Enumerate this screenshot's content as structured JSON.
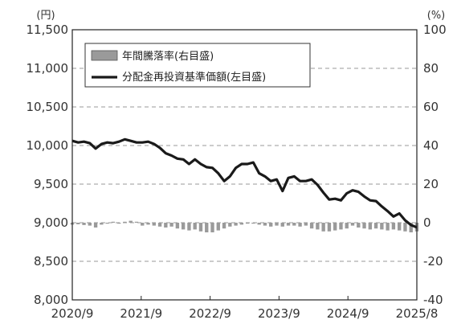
{
  "chart_data": {
    "type": "line",
    "title": "",
    "x_ticks": [
      "2020/9",
      "2021/9",
      "2022/9",
      "2023/9",
      "2024/9",
      "2025/8"
    ],
    "left_axis": {
      "unit": "(円)",
      "ylim": [
        8000,
        11500
      ],
      "ticks": [
        "8,000",
        "8,500",
        "9,000",
        "9,500",
        "10,000",
        "10,500",
        "11,000",
        "11,500"
      ],
      "tick_values": [
        8000,
        8500,
        9000,
        9500,
        10000,
        10500,
        11000,
        11500
      ]
    },
    "right_axis": {
      "unit": "(%)",
      "ylim": [
        -40,
        100
      ],
      "ticks": [
        "-40",
        "-20",
        "0",
        "20",
        "40",
        "60",
        "80",
        "100"
      ],
      "tick_values": [
        -40,
        -20,
        0,
        20,
        40,
        60,
        80,
        100
      ]
    },
    "grid": "dashed horizontal",
    "legend_position": "top-left",
    "legend": {
      "bar_label": "年間騰落率(右目盛)",
      "line_label": "分配金再投資基準価額(左目盛)"
    },
    "colors": {
      "line": "#1a1a1a",
      "bar": "#9a9a9a",
      "grid": "#999999"
    },
    "x": [
      "2020-09",
      "2020-10",
      "2020-11",
      "2020-12",
      "2021-01",
      "2021-02",
      "2021-03",
      "2021-04",
      "2021-05",
      "2021-06",
      "2021-07",
      "2021-08",
      "2021-09",
      "2021-10",
      "2021-11",
      "2021-12",
      "2022-01",
      "2022-02",
      "2022-03",
      "2022-04",
      "2022-05",
      "2022-06",
      "2022-07",
      "2022-08",
      "2022-09",
      "2022-10",
      "2022-11",
      "2022-12",
      "2023-01",
      "2023-02",
      "2023-03",
      "2023-04",
      "2023-05",
      "2023-06",
      "2023-07",
      "2023-08",
      "2023-09",
      "2023-10",
      "2023-11",
      "2023-12",
      "2024-01",
      "2024-02",
      "2024-03",
      "2024-04",
      "2024-05",
      "2024-06",
      "2024-07",
      "2024-08",
      "2024-09",
      "2024-10",
      "2024-11",
      "2024-12",
      "2025-01",
      "2025-02",
      "2025-03",
      "2025-04",
      "2025-05",
      "2025-06",
      "2025-07",
      "2025-08"
    ],
    "series": [
      {
        "name": "分配金再投資基準価額(左目盛)",
        "axis": "left",
        "kind": "line",
        "values": [
          10060,
          10040,
          10050,
          10030,
          9960,
          10020,
          10040,
          10030,
          10050,
          10080,
          10060,
          10040,
          10040,
          10050,
          10020,
          9970,
          9900,
          9870,
          9830,
          9820,
          9760,
          9820,
          9760,
          9720,
          9710,
          9640,
          9540,
          9600,
          9710,
          9760,
          9760,
          9780,
          9640,
          9600,
          9540,
          9560,
          9410,
          9580,
          9600,
          9540,
          9540,
          9560,
          9490,
          9390,
          9300,
          9310,
          9290,
          9380,
          9420,
          9400,
          9340,
          9290,
          9280,
          9210,
          9150,
          9080,
          9120,
          9030,
          8970,
          8940
        ]
      },
      {
        "name": "年間騰落率(右目盛)",
        "axis": "right",
        "kind": "bar",
        "values": [
          -1.0,
          -0.8,
          -1.2,
          -1.5,
          -2.5,
          -1.0,
          -0.5,
          0.5,
          -0.5,
          0.5,
          1.0,
          0.5,
          -1.5,
          -1.0,
          -1.5,
          -2.0,
          -2.5,
          -2.0,
          -3.0,
          -3.5,
          -4.0,
          -3.5,
          -4.5,
          -5.0,
          -5.0,
          -4.0,
          -3.0,
          -2.0,
          -1.5,
          -1.0,
          -0.5,
          -0.5,
          -1.0,
          -1.5,
          -2.0,
          -1.5,
          -2.0,
          -1.5,
          -1.5,
          -2.0,
          -1.5,
          -3.0,
          -3.5,
          -4.5,
          -4.5,
          -4.0,
          -3.5,
          -3.0,
          -1.5,
          -2.5,
          -3.0,
          -3.5,
          -3.0,
          -3.5,
          -4.0,
          -3.5,
          -4.0,
          -4.5,
          -5.0,
          -4.5
        ]
      }
    ]
  }
}
